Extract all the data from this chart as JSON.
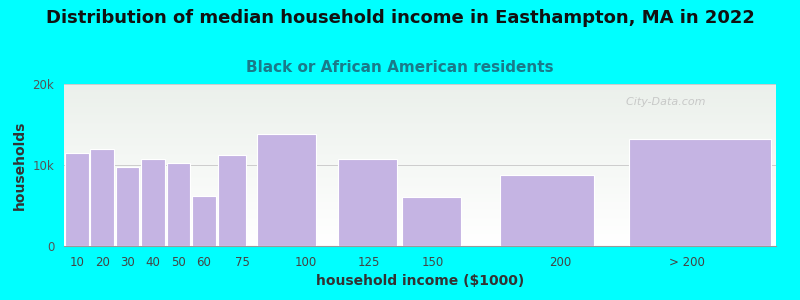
{
  "title": "Distribution of median household income in Easthampton, MA in 2022",
  "subtitle": "Black or African American residents",
  "xlabel": "household income ($1000)",
  "ylabel": "households",
  "background_color": "#00FFFF",
  "bar_color": "#c5b4e3",
  "bar_edge_color": "#ffffff",
  "categories": [
    "10",
    "20",
    "30",
    "40",
    "50",
    "60",
    "75",
    "100",
    "125",
    "150",
    "200",
    "> 200"
  ],
  "left_edges": [
    5,
    15,
    25,
    35,
    45,
    55,
    65,
    80,
    112,
    137,
    175,
    225
  ],
  "widths": [
    10,
    10,
    10,
    10,
    10,
    10,
    12,
    25,
    25,
    25,
    40,
    60
  ],
  "values": [
    11500,
    12000,
    9800,
    10700,
    10200,
    6200,
    11200,
    13800,
    10800,
    6000,
    8800,
    13200
  ],
  "tick_positions": [
    10,
    20,
    30,
    40,
    50,
    60,
    75,
    100,
    125,
    150,
    200,
    250
  ],
  "tick_labels": [
    "10",
    "20",
    "30",
    "40",
    "50",
    "60",
    "75",
    "100",
    "125",
    "150",
    "200",
    "> 200"
  ],
  "xlim": [
    5,
    285
  ],
  "ylim": [
    0,
    20000
  ],
  "yticks": [
    0,
    10000,
    20000
  ],
  "ytick_labels": [
    "0",
    "10k",
    "20k"
  ],
  "watermark": "  City-Data.com",
  "title_fontsize": 13,
  "subtitle_fontsize": 11,
  "axis_label_fontsize": 10,
  "tick_fontsize": 8.5
}
